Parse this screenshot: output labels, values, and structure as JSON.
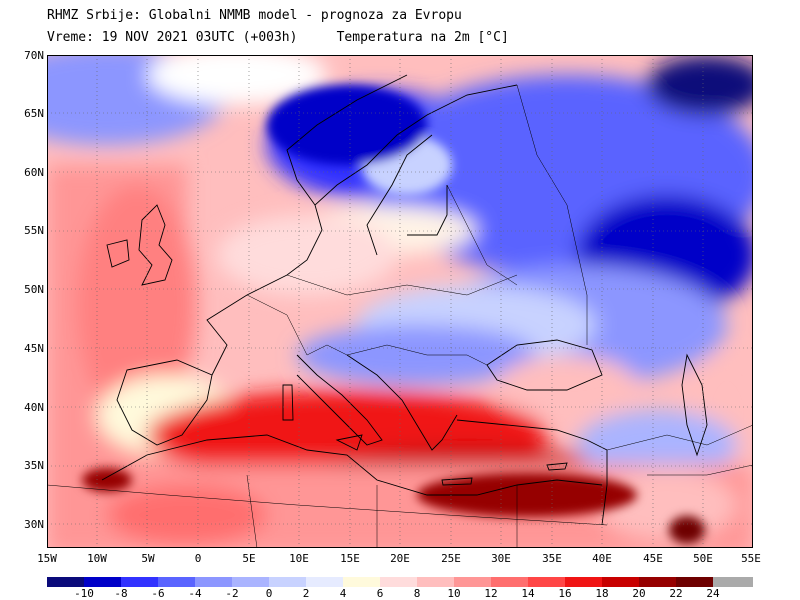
{
  "title": {
    "line1": "RHMZ Srbije: Globalni NMMB model - prognoza za Evropu",
    "line2_left": "Vreme: 19 NOV 2021 03UTC (+003h)",
    "line2_right": "Temperatura na 2m [°C]"
  },
  "map": {
    "projection": "lat-lon",
    "lon_range": [
      -15,
      55
    ],
    "lat_range": [
      28,
      70
    ],
    "lat_ticks": [
      "70N",
      "65N",
      "60N",
      "55N",
      "50N",
      "45N",
      "40N",
      "35N",
      "30N"
    ],
    "lon_ticks": [
      "15W",
      "10W",
      "5W",
      "0",
      "5E",
      "10E",
      "15E",
      "20E",
      "25E",
      "30E",
      "35E",
      "40E",
      "45E",
      "50E",
      "55E"
    ],
    "gridlines": true
  },
  "colorbar": {
    "labels": [
      "-10",
      "-8",
      "-6",
      "-4",
      "-2",
      "0",
      "2",
      "4",
      "6",
      "8",
      "10",
      "12",
      "14",
      "16",
      "18",
      "20",
      "22",
      "24"
    ],
    "colors": [
      "#0a0a7a",
      "#0000c8",
      "#3232ff",
      "#5a64ff",
      "#8c96ff",
      "#aab4ff",
      "#c8d2ff",
      "#e6ebff",
      "#fffadc",
      "#ffdcdc",
      "#ffbebe",
      "#ff9696",
      "#ff6e6e",
      "#ff4646",
      "#f01414",
      "#c80000",
      "#960000",
      "#6e0000",
      "#aaaaaa"
    ]
  }
}
